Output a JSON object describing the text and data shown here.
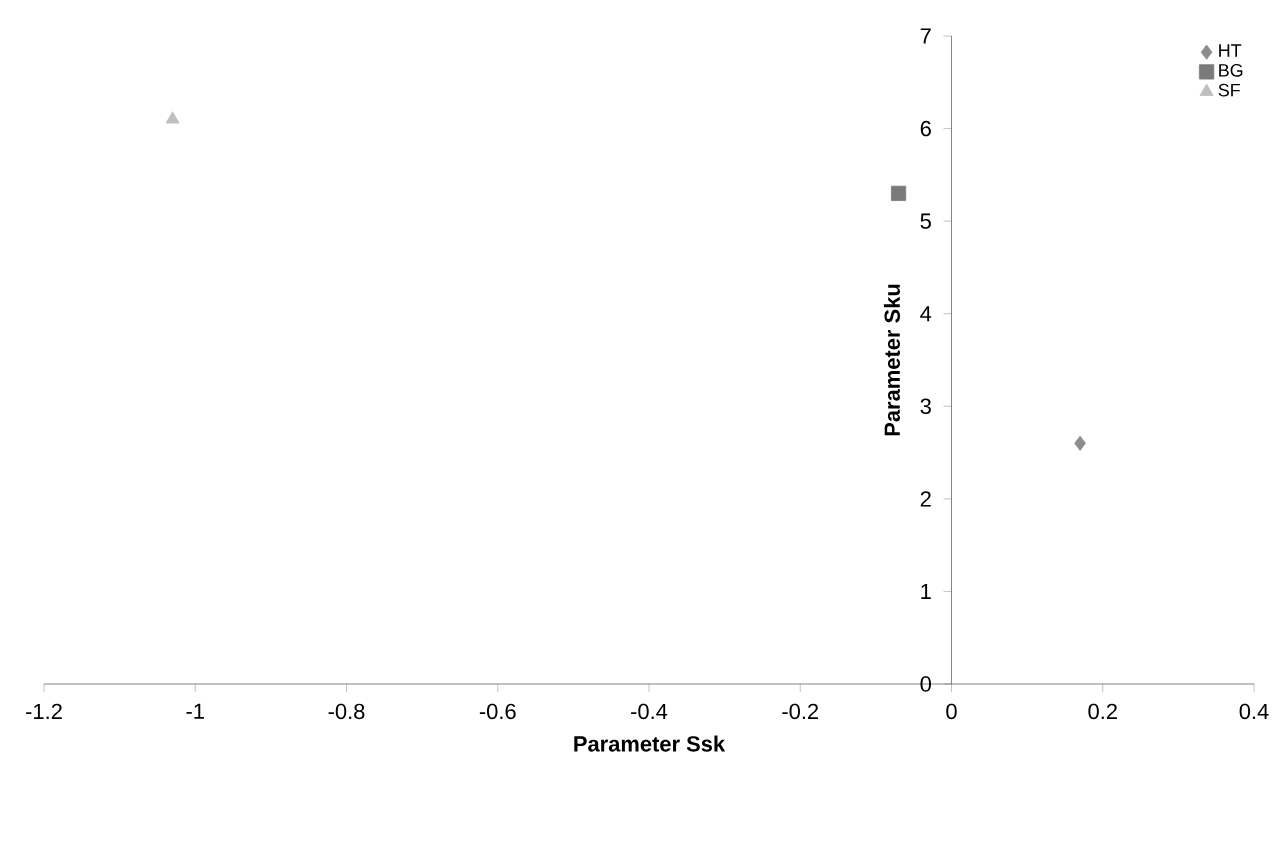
{
  "chart_data": {
    "type": "scatter",
    "xlabel": "Parameter Ssk",
    "ylabel": "Parameter Sku",
    "xlim": [
      -1.2,
      0.4
    ],
    "xticks": [
      -1.2,
      -1,
      -0.8,
      -0.6,
      -0.4,
      -0.2,
      0,
      0.2,
      0.4
    ],
    "ylim": [
      0,
      7
    ],
    "yticks": [
      0,
      1,
      2,
      3,
      4,
      5,
      6,
      7
    ],
    "legend": "top right",
    "grid": false,
    "series": [
      {
        "name": "HT",
        "color": "#8c8c8c",
        "marker": "diamond",
        "x": [
          0.17
        ],
        "values": [
          2.6
        ]
      },
      {
        "name": "BG",
        "color": "#7a7a7a",
        "marker": "square",
        "x": [
          -0.07
        ],
        "values": [
          5.3
        ]
      },
      {
        "name": "SF",
        "color": "#bfbfbf",
        "marker": "triangle",
        "x": [
          -1.03
        ],
        "values": [
          6.1
        ]
      }
    ]
  }
}
